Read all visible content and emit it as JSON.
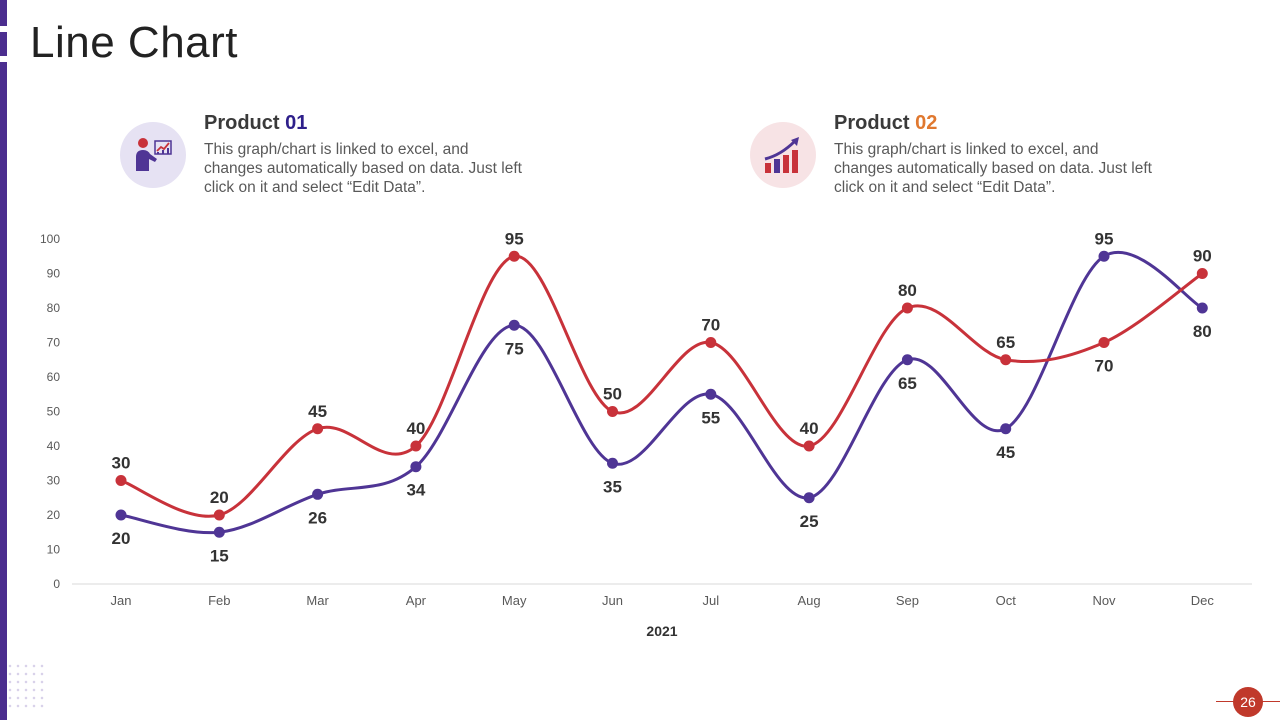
{
  "slide": {
    "title": "Line Chart",
    "page_number": "26"
  },
  "products": [
    {
      "name_prefix": "Product ",
      "name_number": "01",
      "description": "This graph/chart is linked to excel, and changes automatically based on data. Just left click on it and select “Edit Data”.",
      "icon": "presenter-chart-icon",
      "accent": "#2e1f8a"
    },
    {
      "name_prefix": "Product ",
      "name_number": "02",
      "description": "This graph/chart is linked to excel, and changes automatically based on data. Just left click on it and select “Edit Data”.",
      "icon": "growth-bars-icon",
      "accent": "#e0782f"
    }
  ],
  "chart_data": {
    "type": "line",
    "title": "",
    "xlabel": "2021",
    "ylabel": "",
    "ylim": [
      0,
      100
    ],
    "yticks": [
      0,
      10,
      20,
      30,
      40,
      50,
      60,
      70,
      80,
      90,
      100
    ],
    "categories": [
      "Jan",
      "Feb",
      "Mar",
      "Apr",
      "May",
      "Jun",
      "Jul",
      "Aug",
      "Sep",
      "Oct",
      "Nov",
      "Dec"
    ],
    "series": [
      {
        "name": "Product 01",
        "color": "#4f3595",
        "values": [
          20,
          15,
          26,
          34,
          75,
          35,
          55,
          25,
          65,
          45,
          95,
          80
        ]
      },
      {
        "name": "Product 02",
        "color": "#c8323a",
        "values": [
          30,
          20,
          45,
          40,
          95,
          50,
          70,
          40,
          80,
          65,
          70,
          90
        ]
      }
    ],
    "grid": false,
    "legend": "none"
  }
}
